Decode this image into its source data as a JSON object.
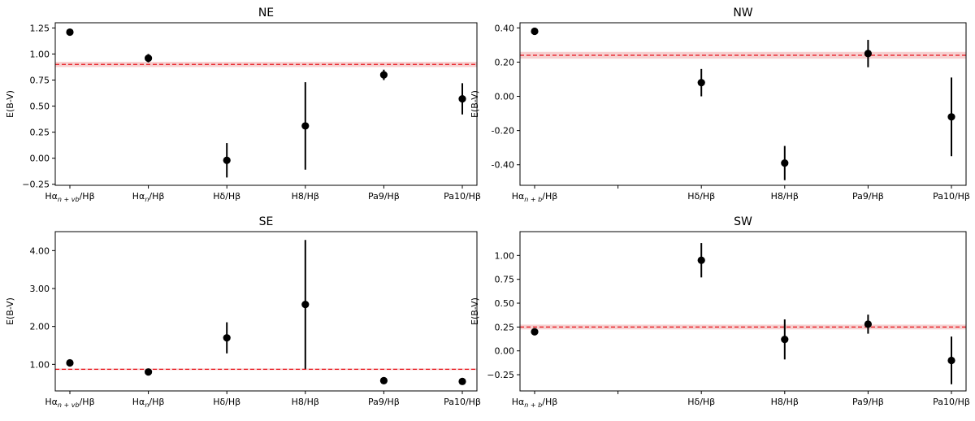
{
  "colors": {
    "point": "#000000",
    "reference_line": "#e8141c",
    "reference_band": "#f4c8c8"
  },
  "chart_data": [
    {
      "type": "scatter",
      "title": "NE",
      "xlabel": "",
      "ylabel": "E(B-V)",
      "categories": [
        "Hα_{n+vb}/Hβ",
        "Hα_n/Hβ",
        "Hδ/Hβ",
        "H8/Hβ",
        "Pa9/Hβ",
        "Pa10/Hβ"
      ],
      "category_labels": [
        {
          "base": "Hα",
          "sub": "n + vb",
          "tail": "/Hβ"
        },
        {
          "base": "Hα",
          "sub": "n",
          "tail": "/Hβ"
        },
        {
          "base": "Hδ/Hβ",
          "sub": "",
          "tail": ""
        },
        {
          "base": "H8/Hβ",
          "sub": "",
          "tail": ""
        },
        {
          "base": "Pa9/Hβ",
          "sub": "",
          "tail": ""
        },
        {
          "base": "Pa10/Hβ",
          "sub": "",
          "tail": ""
        }
      ],
      "values": [
        1.21,
        0.96,
        -0.02,
        0.31,
        0.8,
        0.57
      ],
      "errors": [
        0.02,
        0.04,
        0.165,
        0.42,
        0.05,
        0.15
      ],
      "reference": {
        "value": 0.9,
        "low": 0.875,
        "high": 0.925
      },
      "ylim": [
        -0.26,
        1.3
      ],
      "yticks": [
        -0.25,
        0.0,
        0.25,
        0.5,
        0.75,
        1.0,
        1.25
      ],
      "ytick_labels": [
        "−0.25",
        "0.00",
        "0.25",
        "0.50",
        "0.75",
        "1.00",
        "1.25"
      ]
    },
    {
      "type": "scatter",
      "title": "NW",
      "xlabel": "",
      "ylabel": "E(B-V)",
      "categories": [
        "Hα_{n+b}/Hβ",
        "",
        "Hδ/Hβ",
        "H8/Hβ",
        "Pa9/Hβ",
        "Pa10/Hβ"
      ],
      "category_labels": [
        {
          "base": "Hα",
          "sub": "n + b",
          "tail": "/Hβ"
        },
        {
          "base": "",
          "sub": "",
          "tail": ""
        },
        {
          "base": "Hδ/Hβ",
          "sub": "",
          "tail": ""
        },
        {
          "base": "H8/Hβ",
          "sub": "",
          "tail": ""
        },
        {
          "base": "Pa9/Hβ",
          "sub": "",
          "tail": ""
        },
        {
          "base": "Pa10/Hβ",
          "sub": "",
          "tail": ""
        }
      ],
      "values": [
        0.38,
        null,
        0.08,
        -0.39,
        0.25,
        -0.12
      ],
      "errors": [
        0.01,
        null,
        0.08,
        0.1,
        0.08,
        0.23
      ],
      "reference": {
        "value": 0.24,
        "low": 0.22,
        "high": 0.26
      },
      "ylim": [
        -0.52,
        0.43
      ],
      "yticks": [
        -0.4,
        -0.2,
        0.0,
        0.2,
        0.4
      ],
      "ytick_labels": [
        "-0.40",
        "-0.20",
        "0.00",
        "0.20",
        "0.40"
      ]
    },
    {
      "type": "scatter",
      "title": "SE",
      "xlabel": "",
      "ylabel": "E(B-V)",
      "categories": [
        "Hα_{n+vb}/Hβ",
        "Hα_n/Hβ",
        "Hδ/Hβ",
        "H8/Hβ",
        "Pa9/Hβ",
        "Pa10/Hβ"
      ],
      "category_labels": [
        {
          "base": "Hα",
          "sub": "n + vb",
          "tail": "/Hβ"
        },
        {
          "base": "Hα",
          "sub": "n",
          "tail": "/Hβ"
        },
        {
          "base": "Hδ/Hβ",
          "sub": "",
          "tail": ""
        },
        {
          "base": "H8/Hβ",
          "sub": "",
          "tail": ""
        },
        {
          "base": "Pa9/Hβ",
          "sub": "",
          "tail": ""
        },
        {
          "base": "Pa10/Hβ",
          "sub": "",
          "tail": ""
        }
      ],
      "values": [
        1.04,
        0.8,
        1.7,
        2.58,
        0.57,
        0.55
      ],
      "errors": [
        0.02,
        0.02,
        0.41,
        1.7,
        0.02,
        0.02
      ],
      "reference": {
        "value": 0.87,
        "low": 0.85,
        "high": 0.89
      },
      "ylim": [
        0.3,
        4.5
      ],
      "yticks": [
        1.0,
        2.0,
        3.0,
        4.0
      ],
      "ytick_labels": [
        "1.00",
        "2.00",
        "3.00",
        "4.00"
      ]
    },
    {
      "type": "scatter",
      "title": "SW",
      "xlabel": "",
      "ylabel": "E(B-V)",
      "categories": [
        "Hα_{n+b}/Hβ",
        "",
        "Hδ/Hβ",
        "H8/Hβ",
        "Pa9/Hβ",
        "Pa10/Hβ"
      ],
      "category_labels": [
        {
          "base": "Hα",
          "sub": "n + b",
          "tail": "/Hβ"
        },
        {
          "base": "",
          "sub": "",
          "tail": ""
        },
        {
          "base": "Hδ/Hβ",
          "sub": "",
          "tail": ""
        },
        {
          "base": "H8/Hβ",
          "sub": "",
          "tail": ""
        },
        {
          "base": "Pa9/Hβ",
          "sub": "",
          "tail": ""
        },
        {
          "base": "Pa10/Hβ",
          "sub": "",
          "tail": ""
        }
      ],
      "values": [
        0.2,
        null,
        0.95,
        0.12,
        0.28,
        -0.1
      ],
      "errors": [
        0.01,
        null,
        0.18,
        0.21,
        0.1,
        0.25
      ],
      "reference": {
        "value": 0.25,
        "low": 0.225,
        "high": 0.275
      },
      "ylim": [
        -0.42,
        1.25
      ],
      "yticks": [
        -0.25,
        0.0,
        0.25,
        0.5,
        0.75,
        1.0
      ],
      "ytick_labels": [
        "−0.25",
        "0.00",
        "0.25",
        "0.50",
        "0.75",
        "1.00"
      ]
    }
  ]
}
